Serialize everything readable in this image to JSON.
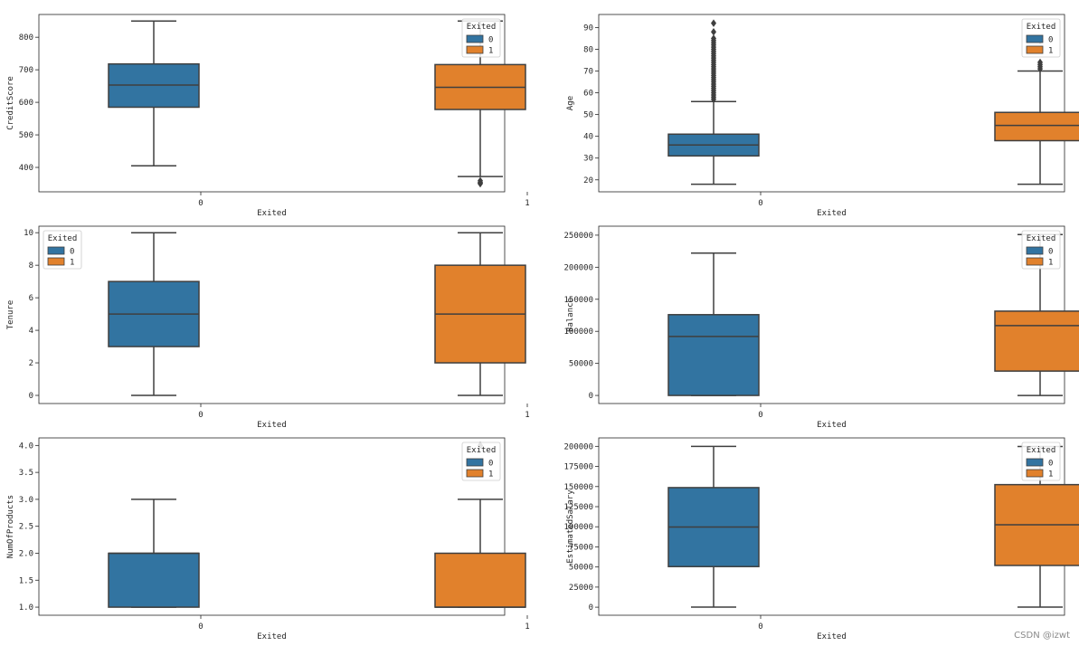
{
  "colors": {
    "group_0": "#3274a1",
    "group_1": "#e1812c",
    "whisker": "#3f3f3f"
  },
  "watermark": "CSDN @izwt",
  "chart_data": [
    {
      "type": "box",
      "xlabel": "Exited",
      "ylabel": "CreditScore",
      "categories": [
        "0",
        "1"
      ],
      "legend": {
        "title": "Exited",
        "entries": [
          "0",
          "1"
        ],
        "placement": "top-right"
      },
      "ylim": [
        325,
        870
      ],
      "yticks": [
        400,
        500,
        600,
        700,
        800
      ],
      "tick_labels": [
        "400",
        "500",
        "600",
        "700",
        "800"
      ],
      "boxes": [
        {
          "category": "0",
          "min": 405,
          "q1": 585,
          "median": 653,
          "q3": 718,
          "max": 850,
          "outliers": []
        },
        {
          "category": "1",
          "min": 372,
          "q1": 578,
          "median": 646,
          "q3": 716,
          "max": 850,
          "outliers": [
            350,
            351,
            354,
            359
          ]
        }
      ]
    },
    {
      "type": "box",
      "xlabel": "Exited",
      "ylabel": "Age",
      "categories": [
        "0",
        "1"
      ],
      "legend": {
        "title": "Exited",
        "entries": [
          "0",
          "1"
        ],
        "placement": "top-right"
      },
      "ylim": [
        14.5,
        96
      ],
      "yticks": [
        20,
        30,
        40,
        50,
        60,
        70,
        80,
        90
      ],
      "tick_labels": [
        "20",
        "30",
        "40",
        "50",
        "60",
        "70",
        "80",
        "90"
      ],
      "boxes": [
        {
          "category": "0",
          "min": 18,
          "q1": 31,
          "median": 36,
          "q3": 41,
          "max": 56,
          "outliers": [
            57,
            58,
            59,
            60,
            61,
            62,
            63,
            64,
            65,
            66,
            67,
            68,
            69,
            70,
            71,
            72,
            73,
            74,
            75,
            76,
            77,
            78,
            79,
            80,
            81,
            82,
            83,
            84,
            85,
            88,
            92
          ]
        },
        {
          "category": "1",
          "min": 18,
          "q1": 38,
          "median": 45,
          "q3": 51,
          "max": 70,
          "outliers": [
            71,
            72,
            73,
            74,
            84
          ]
        }
      ]
    },
    {
      "type": "box",
      "xlabel": "Exited",
      "ylabel": "Tenure",
      "categories": [
        "0",
        "1"
      ],
      "legend": {
        "title": "Exited",
        "entries": [
          "0",
          "1"
        ],
        "placement": "top-left"
      },
      "ylim": [
        -0.5,
        10.4
      ],
      "yticks": [
        0,
        2,
        4,
        6,
        8,
        10
      ],
      "tick_labels": [
        "0",
        "2",
        "4",
        "6",
        "8",
        "10"
      ],
      "boxes": [
        {
          "category": "0",
          "min": 0,
          "q1": 3,
          "median": 5,
          "q3": 7,
          "max": 10,
          "outliers": []
        },
        {
          "category": "1",
          "min": 0,
          "q1": 2,
          "median": 5,
          "q3": 8,
          "max": 10,
          "outliers": []
        }
      ]
    },
    {
      "type": "box",
      "xlabel": "Exited",
      "ylabel": "Balance",
      "categories": [
        "0",
        "1"
      ],
      "legend": {
        "title": "Exited",
        "entries": [
          "0",
          "1"
        ],
        "placement": "top-right"
      },
      "ylim": [
        -12600,
        264000
      ],
      "yticks": [
        0,
        50000,
        100000,
        150000,
        200000,
        250000
      ],
      "tick_labels": [
        "0",
        "50000",
        "100000",
        "150000",
        "200000",
        "250000"
      ],
      "boxes": [
        {
          "category": "0",
          "min": 0,
          "q1": 0,
          "median": 92000,
          "q3": 126000,
          "max": 222000,
          "outliers": []
        },
        {
          "category": "1",
          "min": 0,
          "q1": 38000,
          "median": 109000,
          "q3": 131500,
          "max": 251000,
          "outliers": []
        }
      ]
    },
    {
      "type": "box",
      "xlabel": "Exited",
      "ylabel": "NumOfProducts",
      "categories": [
        "0",
        "1"
      ],
      "legend": {
        "title": "Exited",
        "entries": [
          "0",
          "1"
        ],
        "placement": "top-right"
      },
      "ylim": [
        0.85,
        4.14
      ],
      "yticks": [
        1.0,
        1.5,
        2.0,
        2.5,
        3.0,
        3.5,
        4.0
      ],
      "tick_labels": [
        "1.0",
        "1.5",
        "2.0",
        "2.5",
        "3.0",
        "3.5",
        "4.0"
      ],
      "boxes": [
        {
          "category": "0",
          "min": 1,
          "q1": 1,
          "median": 2,
          "q3": 2,
          "max": 3,
          "outliers": []
        },
        {
          "category": "1",
          "min": 1,
          "q1": 1,
          "median": 1,
          "q3": 2,
          "max": 3,
          "outliers": [
            4,
            4
          ]
        }
      ]
    },
    {
      "type": "box",
      "xlabel": "Exited",
      "ylabel": "EstimatedSalary",
      "categories": [
        "0",
        "1"
      ],
      "legend": {
        "title": "Exited",
        "entries": [
          "0",
          "1"
        ],
        "placement": "top-right"
      },
      "ylim": [
        -10000,
        210500
      ],
      "yticks": [
        0,
        25000,
        50000,
        75000,
        100000,
        125000,
        150000,
        175000,
        200000
      ],
      "tick_labels": [
        "0",
        "25000",
        "50000",
        "75000",
        "100000",
        "125000",
        "150000",
        "175000",
        "200000"
      ],
      "boxes": [
        {
          "category": "0",
          "min": 90,
          "q1": 50500,
          "median": 99700,
          "q3": 148700,
          "max": 199900,
          "outliers": []
        },
        {
          "category": "1",
          "min": 100,
          "q1": 51900,
          "median": 102500,
          "q3": 152400,
          "max": 199800,
          "outliers": []
        }
      ]
    }
  ]
}
